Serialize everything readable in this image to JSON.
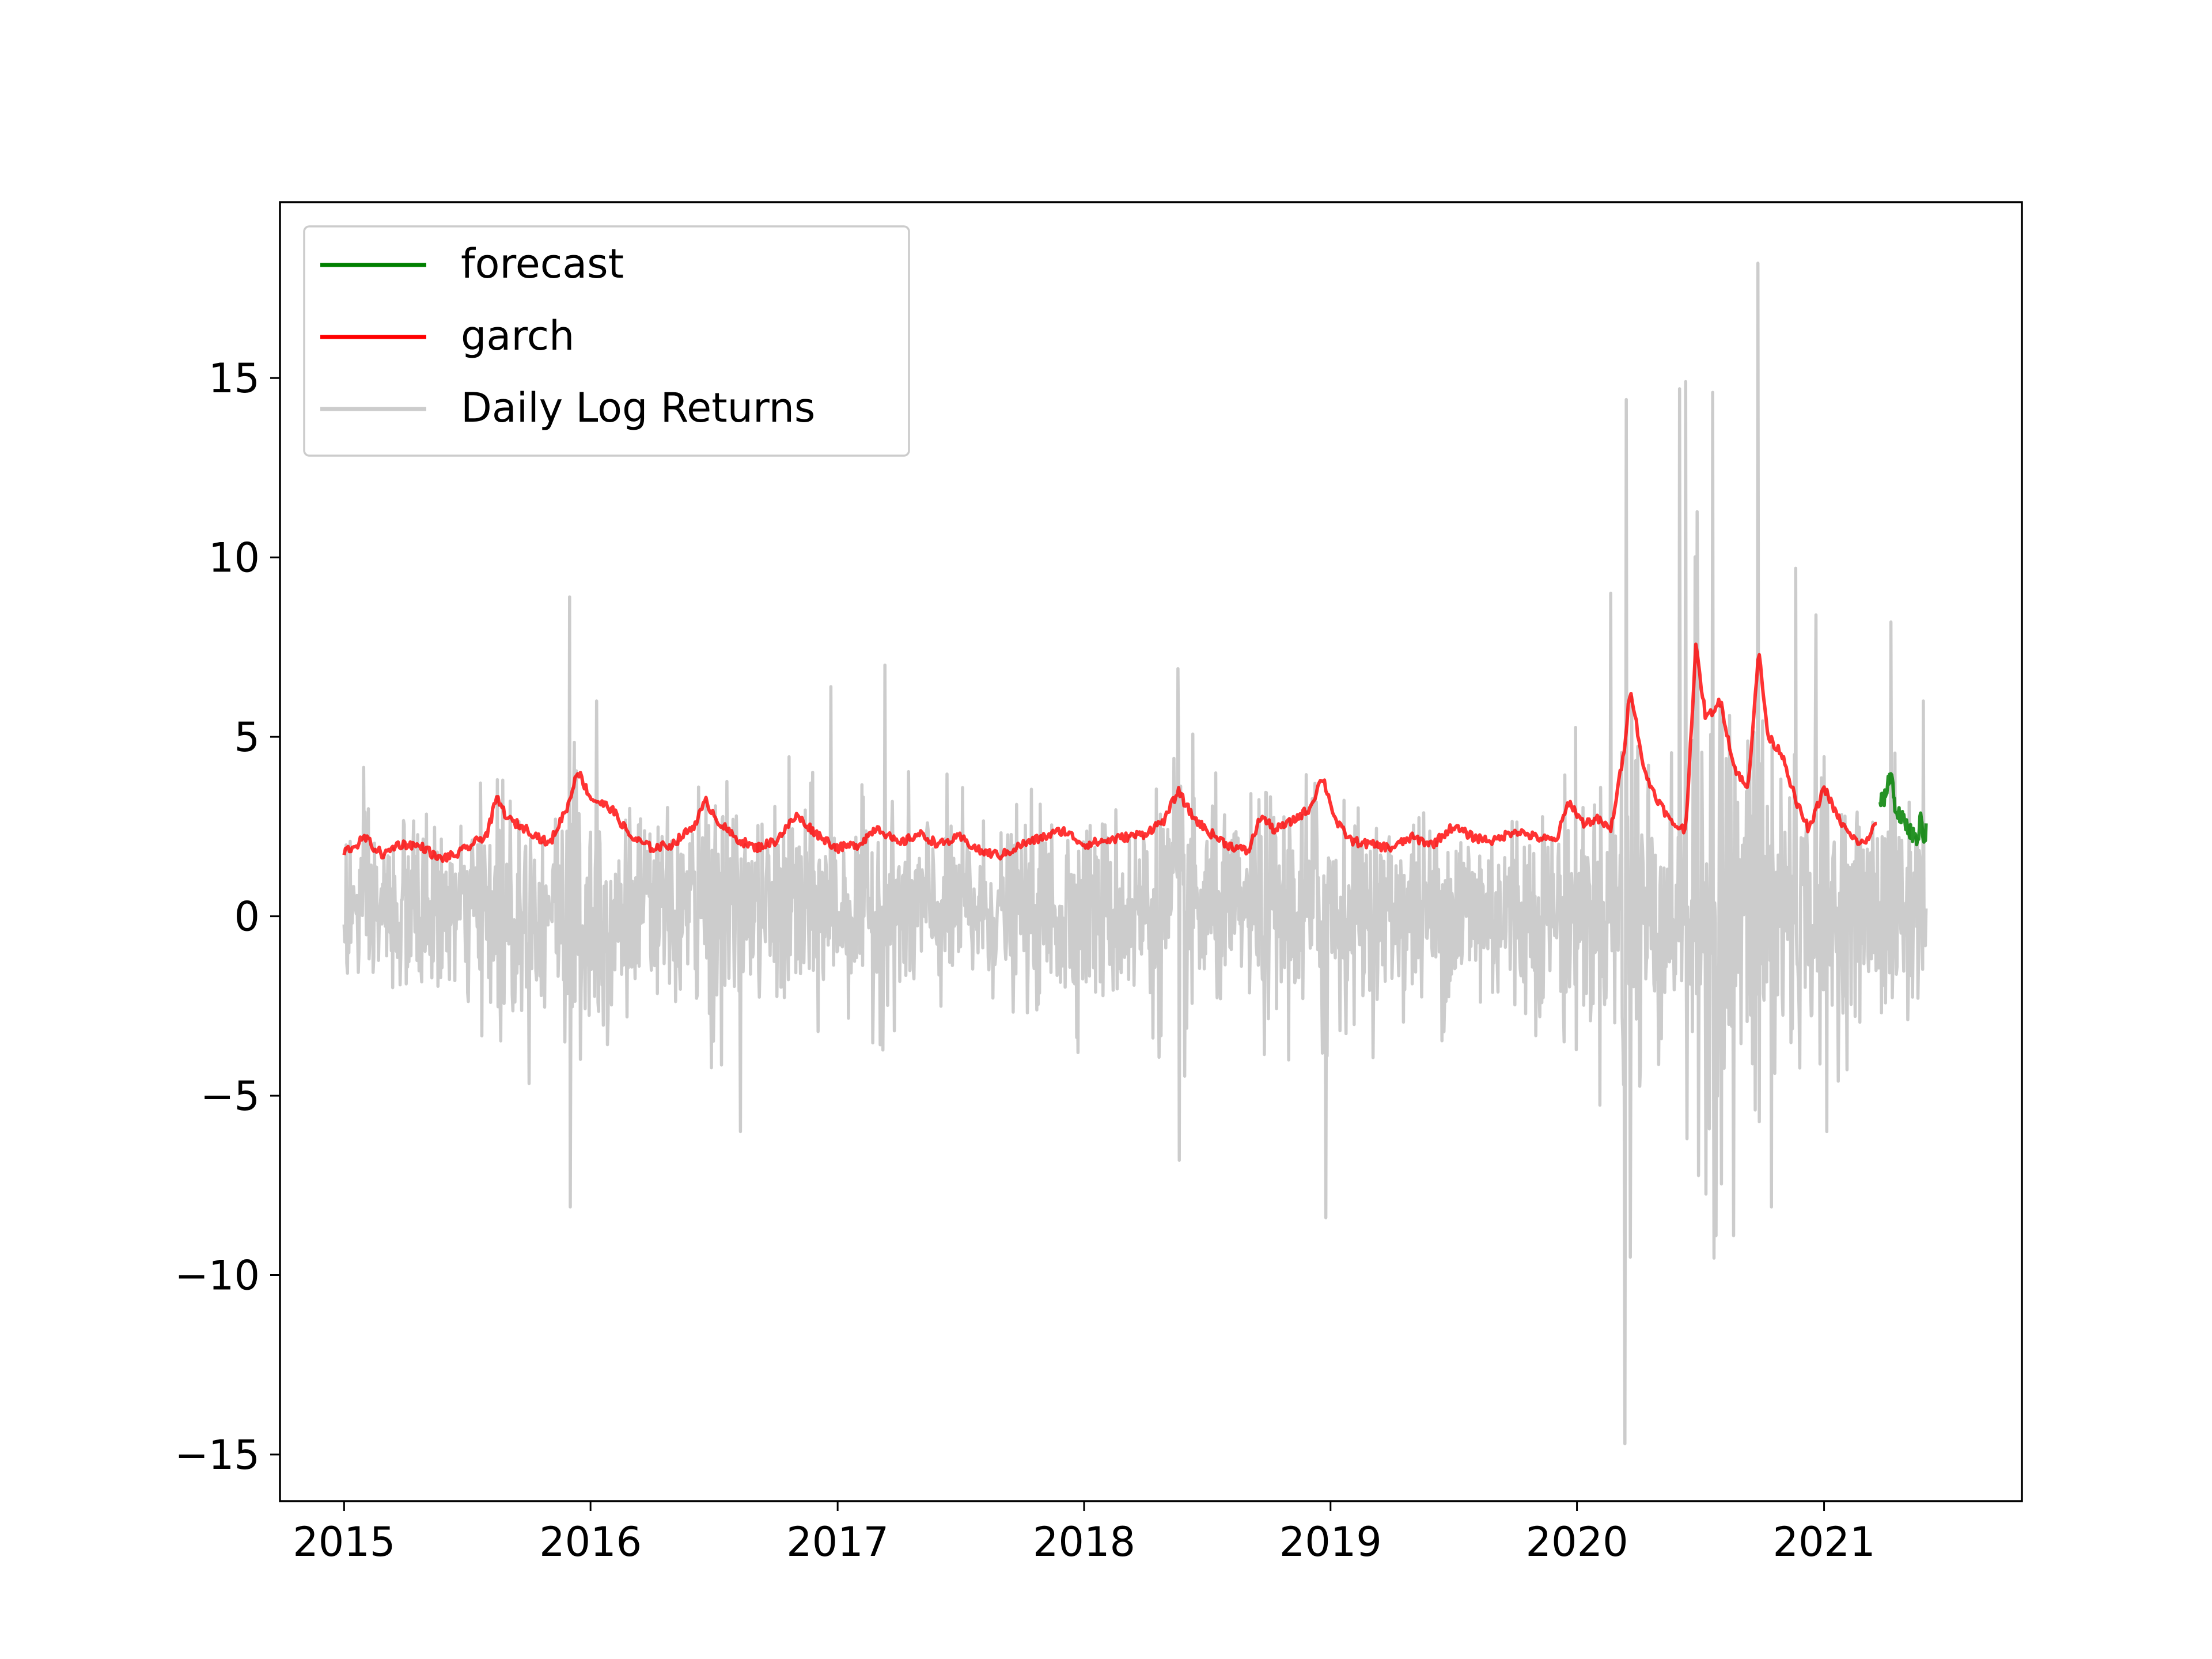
{
  "chart_data": {
    "type": "line",
    "title": "",
    "xlabel": "",
    "ylabel": "",
    "xlim": [
      "2014-09-28",
      "2021-10-21"
    ],
    "ylim": [
      -16.3,
      19.9
    ],
    "x_ticks": [
      "2015",
      "2016",
      "2017",
      "2018",
      "2019",
      "2020",
      "2021"
    ],
    "y_ticks": [
      15,
      10,
      5,
      0,
      -5,
      -10,
      -15
    ],
    "y_tick_labels": [
      "15",
      "10",
      "5",
      "0",
      "−5",
      "−10",
      "−15"
    ],
    "grid": false,
    "legend_position": "upper-left",
    "series": [
      {
        "name": "forecast",
        "color": "#008000",
        "points": [
          [
            "2021-03-25",
            3.2
          ],
          [
            "2021-04-01",
            3.3
          ],
          [
            "2021-04-08",
            3.9
          ],
          [
            "2021-04-11",
            4.0
          ],
          [
            "2021-04-16",
            3.0
          ],
          [
            "2021-04-23",
            2.8
          ],
          [
            "2021-05-01",
            2.6
          ],
          [
            "2021-05-08",
            2.4
          ],
          [
            "2021-05-15",
            2.2
          ],
          [
            "2021-05-20",
            2.0
          ],
          [
            "2021-05-24",
            2.8
          ],
          [
            "2021-05-28",
            2.0
          ],
          [
            "2021-06-01",
            2.4
          ]
        ]
      },
      {
        "name": "garch",
        "color": "#ff0000",
        "points": [
          [
            "2015-01-01",
            1.8
          ],
          [
            "2015-01-20",
            2.0
          ],
          [
            "2015-02-01",
            2.2
          ],
          [
            "2015-02-15",
            1.9
          ],
          [
            "2015-03-01",
            1.7
          ],
          [
            "2015-03-20",
            2.0
          ],
          [
            "2015-04-10",
            2.0
          ],
          [
            "2015-05-01",
            1.9
          ],
          [
            "2015-05-20",
            1.6
          ],
          [
            "2015-06-15",
            1.7
          ],
          [
            "2015-07-10",
            2.0
          ],
          [
            "2015-08-01",
            2.3
          ],
          [
            "2015-08-15",
            3.3
          ],
          [
            "2015-09-01",
            2.7
          ],
          [
            "2015-10-01",
            2.4
          ],
          [
            "2015-11-01",
            2.0
          ],
          [
            "2015-12-01",
            3.2
          ],
          [
            "2015-12-12",
            4.1
          ],
          [
            "2016-01-01",
            3.3
          ],
          [
            "2016-02-01",
            3.0
          ],
          [
            "2016-03-01",
            2.2
          ],
          [
            "2016-04-01",
            1.9
          ],
          [
            "2016-05-01",
            2.0
          ],
          [
            "2016-06-01",
            2.5
          ],
          [
            "2016-06-20",
            3.2
          ],
          [
            "2016-07-10",
            2.6
          ],
          [
            "2016-08-01",
            2.2
          ],
          [
            "2016-09-01",
            1.9
          ],
          [
            "2016-10-01",
            2.1
          ],
          [
            "2016-11-01",
            2.8
          ],
          [
            "2016-12-01",
            2.3
          ],
          [
            "2017-01-01",
            1.9
          ],
          [
            "2017-02-01",
            2.0
          ],
          [
            "2017-03-01",
            2.5
          ],
          [
            "2017-04-01",
            2.0
          ],
          [
            "2017-05-01",
            2.3
          ],
          [
            "2017-06-01",
            2.0
          ],
          [
            "2017-07-01",
            2.2
          ],
          [
            "2017-08-01",
            1.8
          ],
          [
            "2017-09-01",
            1.7
          ],
          [
            "2017-10-01",
            2.0
          ],
          [
            "2017-11-01",
            2.2
          ],
          [
            "2017-12-01",
            2.4
          ],
          [
            "2018-01-01",
            2.0
          ],
          [
            "2018-02-01",
            2.1
          ],
          [
            "2018-03-01",
            2.2
          ],
          [
            "2018-04-01",
            2.3
          ],
          [
            "2018-05-01",
            2.7
          ],
          [
            "2018-05-20",
            3.5
          ],
          [
            "2018-06-10",
            2.8
          ],
          [
            "2018-07-01",
            2.4
          ],
          [
            "2018-08-01",
            2.0
          ],
          [
            "2018-09-01",
            1.8
          ],
          [
            "2018-09-20",
            2.8
          ],
          [
            "2018-10-10",
            2.4
          ],
          [
            "2018-11-01",
            2.6
          ],
          [
            "2018-12-01",
            3.0
          ],
          [
            "2018-12-20",
            3.9
          ],
          [
            "2019-01-10",
            2.6
          ],
          [
            "2019-02-01",
            2.1
          ],
          [
            "2019-03-01",
            2.0
          ],
          [
            "2019-04-01",
            1.9
          ],
          [
            "2019-05-01",
            2.2
          ],
          [
            "2019-06-01",
            2.0
          ],
          [
            "2019-07-01",
            2.5
          ],
          [
            "2019-08-01",
            2.2
          ],
          [
            "2019-09-01",
            2.1
          ],
          [
            "2019-10-01",
            2.4
          ],
          [
            "2019-11-01",
            2.2
          ],
          [
            "2019-12-01",
            2.1
          ],
          [
            "2019-12-20",
            3.2
          ],
          [
            "2020-01-10",
            2.6
          ],
          [
            "2020-02-01",
            2.7
          ],
          [
            "2020-02-20",
            2.4
          ],
          [
            "2020-03-10",
            4.5
          ],
          [
            "2020-03-20",
            6.4
          ],
          [
            "2020-04-10",
            4.0
          ],
          [
            "2020-05-01",
            3.2
          ],
          [
            "2020-05-20",
            2.6
          ],
          [
            "2020-06-10",
            2.4
          ],
          [
            "2020-06-25",
            7.5
          ],
          [
            "2020-07-10",
            5.5
          ],
          [
            "2020-08-01",
            6.0
          ],
          [
            "2020-08-20",
            4.2
          ],
          [
            "2020-09-10",
            3.5
          ],
          [
            "2020-09-26",
            7.4
          ],
          [
            "2020-10-10",
            5.0
          ],
          [
            "2020-11-01",
            4.5
          ],
          [
            "2020-11-20",
            3.2
          ],
          [
            "2020-12-10",
            2.4
          ],
          [
            "2021-01-01",
            3.6
          ],
          [
            "2021-01-20",
            2.8
          ],
          [
            "2021-02-10",
            2.2
          ],
          [
            "2021-03-01",
            2.0
          ],
          [
            "2021-03-20",
            2.6
          ]
        ]
      },
      {
        "name": "Daily Log Returns",
        "color": "#cccccc",
        "generated": true,
        "start": "2015-01-01",
        "end": "2021-06-01",
        "extremes": [
          [
            "2015-12-01",
            8.9
          ],
          [
            "2015-12-02",
            -8.1
          ],
          [
            "2016-01-10",
            6.0
          ],
          [
            "2016-08-10",
            -6.0
          ],
          [
            "2016-12-22",
            6.4
          ],
          [
            "2017-03-12",
            7.0
          ],
          [
            "2018-05-20",
            6.9
          ],
          [
            "2018-05-22",
            -6.8
          ],
          [
            "2018-12-25",
            -8.4
          ],
          [
            "2020-02-20",
            9.0
          ],
          [
            "2020-03-12",
            -14.7
          ],
          [
            "2020-03-14",
            14.4
          ],
          [
            "2020-03-20",
            -9.5
          ],
          [
            "2020-06-01",
            14.7
          ],
          [
            "2020-06-10",
            14.9
          ],
          [
            "2020-06-12",
            -6.2
          ],
          [
            "2020-07-20",
            14.6
          ],
          [
            "2020-07-25",
            -8.9
          ],
          [
            "2020-08-20",
            -8.9
          ],
          [
            "2020-09-25",
            18.2
          ],
          [
            "2020-10-15",
            -8.1
          ],
          [
            "2020-11-20",
            9.7
          ],
          [
            "2020-12-20",
            8.4
          ],
          [
            "2021-01-05",
            -6.0
          ],
          [
            "2021-04-10",
            8.2
          ],
          [
            "2021-05-28",
            6.0
          ]
        ]
      }
    ]
  }
}
